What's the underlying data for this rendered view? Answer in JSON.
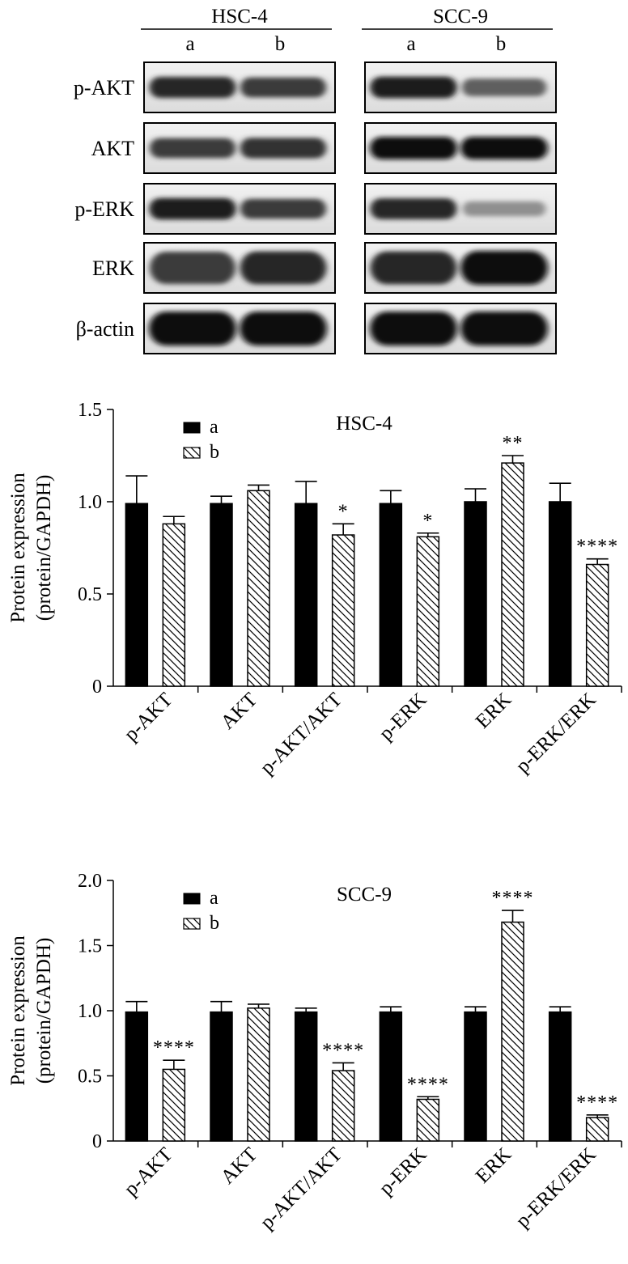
{
  "blot": {
    "cell_lines": [
      {
        "name": "HSC-4",
        "lanes": [
          "a",
          "b"
        ]
      },
      {
        "name": "SCC-9",
        "lanes": [
          "a",
          "b"
        ]
      }
    ],
    "row_labels": [
      "p-AKT",
      "AKT",
      "p-ERK",
      "ERK",
      "β-actin"
    ],
    "band_intensity": [
      [
        [
          0.85,
          0.75
        ],
        [
          0.9,
          0.55
        ]
      ],
      [
        [
          0.75,
          0.8
        ],
        [
          0.98,
          0.98
        ]
      ],
      [
        [
          0.9,
          0.75
        ],
        [
          0.85,
          0.3
        ]
      ],
      [
        [
          0.75,
          0.85
        ],
        [
          0.85,
          1.0
        ]
      ],
      [
        [
          1.0,
          1.0
        ],
        [
          1.0,
          1.0
        ]
      ]
    ]
  },
  "legend": {
    "items": [
      "a",
      "b"
    ]
  },
  "chart_data": [
    {
      "type": "bar",
      "title": "HSC-4",
      "ylabel_line1": "Protein expression",
      "ylabel_line2": "(protein/GAPDH)",
      "ylim": [
        0,
        1.5
      ],
      "yticks": [
        0,
        0.5,
        1.0,
        1.5
      ],
      "ytick_labels": [
        "0",
        "0.5",
        "1.0",
        "1.5"
      ],
      "categories": [
        "p-AKT",
        "AKT",
        "p-AKT/AKT",
        "p-ERK",
        "ERK",
        "p-ERK/ERK"
      ],
      "series": [
        {
          "name": "a",
          "values": [
            0.99,
            0.99,
            0.99,
            0.99,
            1.0,
            1.0
          ],
          "errors": [
            0.15,
            0.04,
            0.12,
            0.07,
            0.07,
            0.1
          ],
          "color": "#000000"
        },
        {
          "name": "b",
          "values": [
            0.88,
            1.06,
            0.82,
            0.81,
            1.21,
            0.66
          ],
          "errors": [
            0.04,
            0.03,
            0.06,
            0.02,
            0.04,
            0.03
          ],
          "color": "#ffffff"
        }
      ],
      "annotations": [
        "",
        "",
        "*",
        "*",
        "**",
        "****"
      ]
    },
    {
      "type": "bar",
      "title": "SCC-9",
      "ylabel_line1": "Protein expression",
      "ylabel_line2": "(protein/GAPDH)",
      "ylim": [
        0,
        2.0
      ],
      "yticks": [
        0,
        0.5,
        1.0,
        1.5,
        2.0
      ],
      "ytick_labels": [
        "0",
        "0.5",
        "1.0",
        "1.5",
        "2.0"
      ],
      "categories": [
        "p-AKT",
        "AKT",
        "p-AKT/AKT",
        "p-ERK",
        "ERK",
        "p-ERK/ERK"
      ],
      "series": [
        {
          "name": "a",
          "values": [
            0.99,
            0.99,
            0.99,
            0.99,
            0.99,
            0.99
          ],
          "errors": [
            0.08,
            0.08,
            0.03,
            0.04,
            0.04,
            0.04
          ],
          "color": "#000000"
        },
        {
          "name": "b",
          "values": [
            0.55,
            1.02,
            0.54,
            0.32,
            1.68,
            0.18
          ],
          "errors": [
            0.07,
            0.03,
            0.06,
            0.02,
            0.09,
            0.02
          ],
          "color": "#ffffff"
        }
      ],
      "annotations": [
        "****",
        "",
        "****",
        "****",
        "****",
        "****"
      ]
    }
  ]
}
